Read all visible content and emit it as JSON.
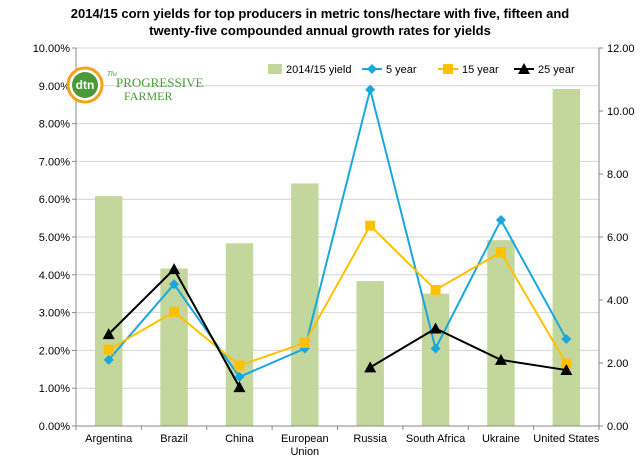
{
  "chart_data": {
    "type": "bar",
    "title_line1": "2014/15 corn yields for top producers in metric tons/hectare with five, fifteen and",
    "title_line2": "twenty-five compounded annual growth rates for yields",
    "categories": [
      "Argentina",
      "Brazil",
      "China",
      "European Union",
      "Russia",
      "South Africa",
      "Ukraine",
      "United States"
    ],
    "category_lines": [
      [
        "Argentina"
      ],
      [
        "Brazil"
      ],
      [
        "China"
      ],
      [
        "European",
        "Union"
      ],
      [
        "Russia"
      ],
      [
        "South Africa"
      ],
      [
        "Ukraine"
      ],
      [
        "United States"
      ]
    ],
    "left_axis": {
      "ylim": [
        0,
        0.1
      ],
      "ticks": [
        0,
        0.01,
        0.02,
        0.03,
        0.04,
        0.05,
        0.06,
        0.07,
        0.08,
        0.09,
        0.1
      ],
      "tick_labels": [
        "0.00%",
        "1.00%",
        "2.00%",
        "3.00%",
        "4.00%",
        "5.00%",
        "6.00%",
        "7.00%",
        "8.00%",
        "9.00%",
        "10.00%"
      ]
    },
    "right_axis": {
      "ylim": [
        0,
        12
      ],
      "ticks": [
        0,
        2,
        4,
        6,
        8,
        10,
        12
      ],
      "tick_labels": [
        "0.00",
        "2.00",
        "4.00",
        "6.00",
        "8.00",
        "10.00",
        "12.00"
      ]
    },
    "series": [
      {
        "name": "2014/15 yield",
        "type": "bar",
        "axis": "right",
        "color": "#c3d69b",
        "values": [
          7.3,
          5.0,
          5.8,
          7.7,
          4.6,
          4.2,
          5.9,
          10.7
        ]
      },
      {
        "name": "5 year",
        "type": "line",
        "axis": "left",
        "color": "#1aa7dc",
        "marker": "diamond",
        "values": [
          0.0175,
          0.0375,
          0.013,
          0.0205,
          0.089,
          0.0205,
          0.0545,
          0.023
        ]
      },
      {
        "name": "15 year",
        "type": "line",
        "axis": "left",
        "color": "#ffc000",
        "marker": "square",
        "values": [
          0.0202,
          0.0302,
          0.016,
          0.022,
          0.053,
          0.036,
          0.046,
          0.0165
        ]
      },
      {
        "name": "25 year",
        "type": "line",
        "axis": "left",
        "color": "#000000",
        "marker": "triangle",
        "values": [
          0.0243,
          0.0415,
          0.0103,
          null,
          0.0155,
          0.0258,
          0.0175,
          0.0148
        ]
      }
    ],
    "grid": true,
    "legend_position": "top-right"
  },
  "logo": {
    "mark_text": "dtn",
    "brand_line1": "PROGRESSIVE",
    "brand_line2": "FARMER",
    "brand_prefix": "The",
    "colors": {
      "green": "#4a9a3a",
      "orange": "#f4a21c",
      "white": "#ffffff"
    }
  }
}
